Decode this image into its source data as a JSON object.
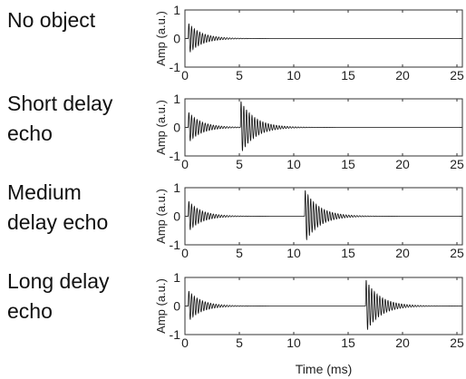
{
  "row_labels": [
    "No object",
    "Short delay\necho",
    "Medium\ndelay echo",
    "Long delay\necho"
  ],
  "chart_data": [
    {
      "type": "line",
      "title": "",
      "xlabel": "",
      "ylabel": "Amp (a.u.)",
      "xlim": [
        0,
        25.5
      ],
      "ylim": [
        -1,
        1
      ],
      "xticks": [
        0,
        5,
        10,
        15,
        20,
        25
      ],
      "yticks": [
        -1,
        0,
        1
      ],
      "series": [
        {
          "pulses": [
            {
              "t0_ms": 0.3,
              "amplitude": 0.55,
              "decay_ms": 1.2
            }
          ]
        }
      ]
    },
    {
      "type": "line",
      "title": "",
      "xlabel": "",
      "ylabel": "Amp (a.u.)",
      "xlim": [
        0,
        25.5
      ],
      "ylim": [
        -1,
        1
      ],
      "xticks": [
        0,
        5,
        10,
        15,
        20,
        25
      ],
      "yticks": [
        -1,
        0,
        1
      ],
      "series": [
        {
          "pulses": [
            {
              "t0_ms": 0.3,
              "amplitude": 0.55,
              "decay_ms": 1.2
            },
            {
              "t0_ms": 5.1,
              "amplitude": 0.95,
              "decay_ms": 1.3
            }
          ]
        }
      ]
    },
    {
      "type": "line",
      "title": "",
      "xlabel": "",
      "ylabel": "Amp (a.u.)",
      "xlim": [
        0,
        25.5
      ],
      "ylim": [
        -1,
        1
      ],
      "xticks": [
        0,
        5,
        10,
        15,
        20,
        25
      ],
      "yticks": [
        -1,
        0,
        1
      ],
      "series": [
        {
          "pulses": [
            {
              "t0_ms": 0.3,
              "amplitude": 0.55,
              "decay_ms": 1.2
            },
            {
              "t0_ms": 11.0,
              "amplitude": 0.95,
              "decay_ms": 1.3
            }
          ]
        }
      ]
    },
    {
      "type": "line",
      "title": "",
      "xlabel": "Time (ms)",
      "ylabel": "Amp (a.u.)",
      "xlim": [
        0,
        25.5
      ],
      "ylim": [
        -1,
        1
      ],
      "xticks": [
        0,
        5,
        10,
        15,
        20,
        25
      ],
      "yticks": [
        -1,
        0,
        1
      ],
      "series": [
        {
          "pulses": [
            {
              "t0_ms": 0.3,
              "amplitude": 0.55,
              "decay_ms": 1.2
            },
            {
              "t0_ms": 16.6,
              "amplitude": 0.95,
              "decay_ms": 1.3
            }
          ]
        }
      ]
    }
  ]
}
